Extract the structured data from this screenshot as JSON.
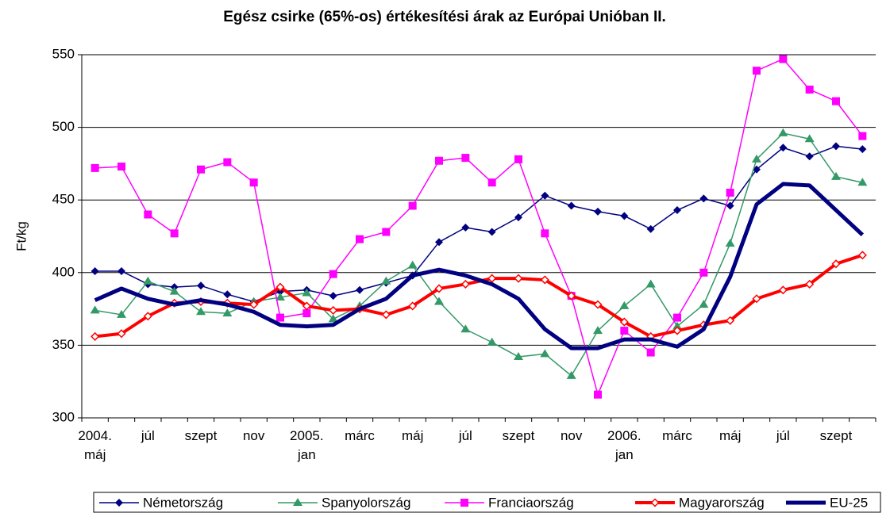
{
  "chart_data": {
    "type": "line",
    "title": "Egész csirke (65%-os) értékesítési árak az Európai Unióban II.",
    "y_label": "Ft/kg",
    "categories": [
      "2004.\nmáj",
      null,
      "júl",
      null,
      "szept",
      null,
      "nov",
      null,
      "2005.\njan",
      null,
      "márc",
      null,
      "máj",
      null,
      "júl",
      null,
      "szept",
      null,
      "nov",
      null,
      "2006.\njan",
      null,
      "márc",
      null,
      "máj",
      null,
      "júl",
      null,
      "szept",
      null
    ],
    "ylim": [
      300,
      550
    ],
    "yticks": [
      300,
      350,
      400,
      450,
      500,
      550
    ],
    "grid": true,
    "legend": "bottom",
    "series": [
      {
        "name": "Németország",
        "color": "#000080",
        "marker": "diamond",
        "width": 1.5,
        "values": [
          401,
          401,
          392,
          390,
          391,
          385,
          380,
          387,
          388,
          384,
          388,
          393,
          398,
          421,
          431,
          428,
          438,
          453,
          446,
          442,
          439,
          430,
          443,
          451,
          446,
          471,
          486,
          480,
          487,
          485
        ]
      },
      {
        "name": "Spanyolország",
        "color": "#339966",
        "marker": "triangle",
        "width": 1.5,
        "values": [
          374,
          371,
          394,
          387,
          373,
          372,
          380,
          383,
          386,
          368,
          377,
          394,
          405,
          380,
          361,
          352,
          342,
          344,
          329,
          360,
          377,
          392,
          363,
          378,
          420,
          478,
          496,
          492,
          466,
          462
        ]
      },
      {
        "name": "Franciaország",
        "color": "#ff00ff",
        "marker": "square",
        "width": 1.5,
        "values": [
          472,
          473,
          440,
          427,
          471,
          476,
          462,
          369,
          372,
          399,
          423,
          428,
          446,
          477,
          479,
          462,
          478,
          427,
          384,
          316,
          360,
          345,
          369,
          400,
          455,
          539,
          547,
          526,
          518,
          494
        ]
      },
      {
        "name": "Magyarország",
        "color": "#ff0000",
        "marker": "open-diamond",
        "width": 4,
        "values": [
          356,
          358,
          370,
          379,
          380,
          379,
          378,
          390,
          377,
          374,
          375,
          371,
          377,
          389,
          392,
          396,
          396,
          395,
          384,
          378,
          366,
          356,
          360,
          364,
          367,
          382,
          388,
          392,
          406,
          412
        ]
      },
      {
        "name": "EU-25",
        "color": "#000080",
        "marker": "none",
        "width": 5,
        "values": [
          381,
          389,
          382,
          378,
          381,
          378,
          373,
          364,
          363,
          364,
          375,
          382,
          398,
          402,
          398,
          392,
          382,
          361,
          348,
          348,
          354,
          354,
          349,
          361,
          397,
          447,
          461,
          460,
          443,
          426
        ]
      }
    ]
  }
}
